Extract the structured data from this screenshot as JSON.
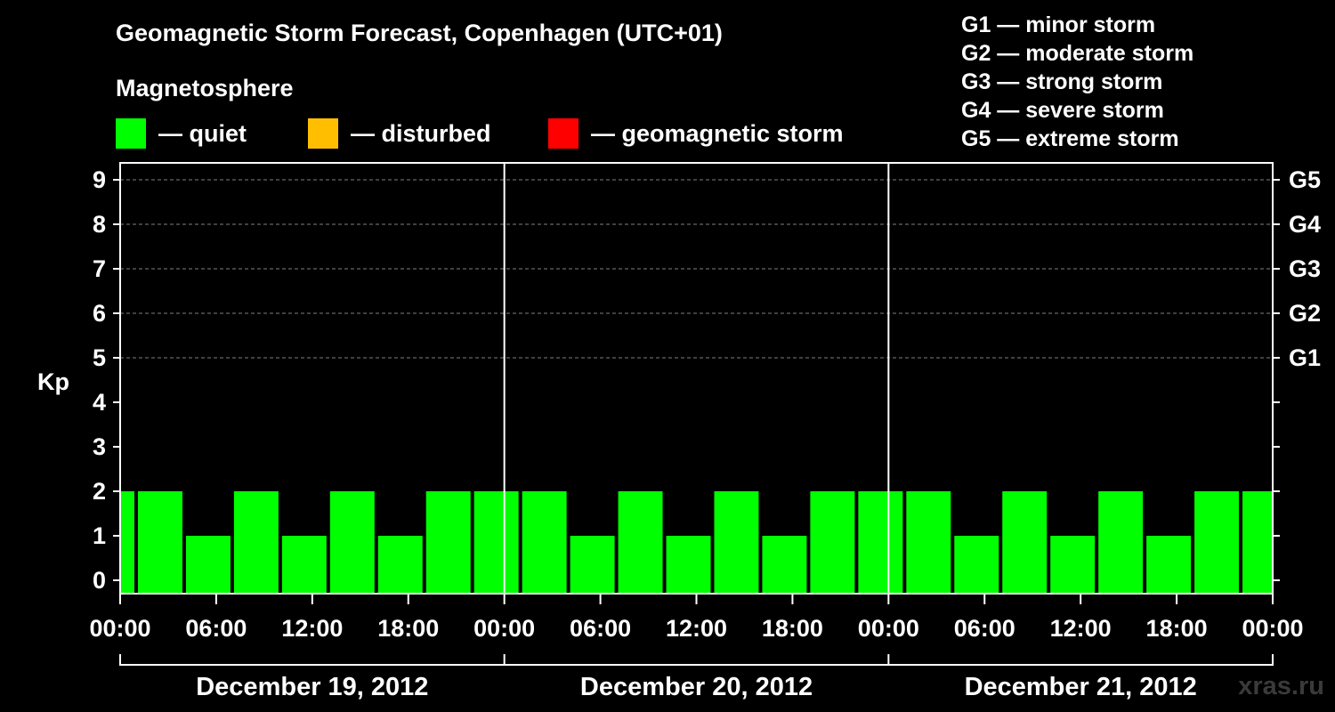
{
  "header": {
    "title": "Geomagnetic Storm Forecast, Copenhagen (UTC+01)",
    "subtitle": "Magnetosphere"
  },
  "legend": [
    {
      "label": "— quiet",
      "color": "#00ff00"
    },
    {
      "label": "— disturbed",
      "color": "#ffbf00"
    },
    {
      "label": "— geomagnetic storm",
      "color": "#ff0000"
    }
  ],
  "storm_scale": [
    "G1 — minor storm",
    "G2 — moderate storm",
    "G3 — strong storm",
    "G4 — severe storm",
    "G5 — extreme storm"
  ],
  "watermark": "xras.ru",
  "colors": {
    "quiet": "#00ff00",
    "disturbed": "#ffbf00",
    "storm": "#ff0000",
    "axis": "#ffffff",
    "grid": "#808080"
  },
  "chart_data": {
    "type": "bar",
    "title": "Geomagnetic Storm Forecast, Copenhagen (UTC+01)",
    "ylabel": "Kp",
    "ylim": [
      0,
      9
    ],
    "yticks": [
      "0",
      "1",
      "2",
      "3",
      "4",
      "5",
      "6",
      "7",
      "8",
      "9"
    ],
    "right_ticks": [
      {
        "kp": 5,
        "label": "G1"
      },
      {
        "kp": 6,
        "label": "G2"
      },
      {
        "kp": 7,
        "label": "G3"
      },
      {
        "kp": 8,
        "label": "G4"
      },
      {
        "kp": 9,
        "label": "G5"
      }
    ],
    "xlim_hours": [
      0,
      72
    ],
    "xtick_labels": [
      "00:00",
      "06:00",
      "12:00",
      "18:00",
      "00:00",
      "06:00",
      "12:00",
      "18:00",
      "00:00",
      "06:00",
      "12:00",
      "18:00",
      "00:00"
    ],
    "xtick_hours": [
      0,
      6,
      12,
      18,
      24,
      30,
      36,
      42,
      48,
      54,
      60,
      66,
      72
    ],
    "day_dividers_hours": [
      24,
      48
    ],
    "day_labels": [
      "December 19, 2012",
      "December 20, 2012",
      "December 21, 2012"
    ],
    "bars": [
      {
        "start": 0,
        "end": 1,
        "kp": 2,
        "level": "quiet"
      },
      {
        "start": 1,
        "end": 4,
        "kp": 2,
        "level": "quiet"
      },
      {
        "start": 4,
        "end": 7,
        "kp": 1,
        "level": "quiet"
      },
      {
        "start": 7,
        "end": 10,
        "kp": 2,
        "level": "quiet"
      },
      {
        "start": 10,
        "end": 13,
        "kp": 1,
        "level": "quiet"
      },
      {
        "start": 13,
        "end": 16,
        "kp": 2,
        "level": "quiet"
      },
      {
        "start": 16,
        "end": 19,
        "kp": 1,
        "level": "quiet"
      },
      {
        "start": 19,
        "end": 22,
        "kp": 2,
        "level": "quiet"
      },
      {
        "start": 22,
        "end": 25,
        "kp": 2,
        "level": "quiet"
      },
      {
        "start": 25,
        "end": 28,
        "kp": 2,
        "level": "quiet"
      },
      {
        "start": 28,
        "end": 31,
        "kp": 1,
        "level": "quiet"
      },
      {
        "start": 31,
        "end": 34,
        "kp": 2,
        "level": "quiet"
      },
      {
        "start": 34,
        "end": 37,
        "kp": 1,
        "level": "quiet"
      },
      {
        "start": 37,
        "end": 40,
        "kp": 2,
        "level": "quiet"
      },
      {
        "start": 40,
        "end": 43,
        "kp": 1,
        "level": "quiet"
      },
      {
        "start": 43,
        "end": 46,
        "kp": 2,
        "level": "quiet"
      },
      {
        "start": 46,
        "end": 49,
        "kp": 2,
        "level": "quiet"
      },
      {
        "start": 49,
        "end": 52,
        "kp": 2,
        "level": "quiet"
      },
      {
        "start": 52,
        "end": 55,
        "kp": 1,
        "level": "quiet"
      },
      {
        "start": 55,
        "end": 58,
        "kp": 2,
        "level": "quiet"
      },
      {
        "start": 58,
        "end": 61,
        "kp": 1,
        "level": "quiet"
      },
      {
        "start": 61,
        "end": 64,
        "kp": 2,
        "level": "quiet"
      },
      {
        "start": 64,
        "end": 67,
        "kp": 1,
        "level": "quiet"
      },
      {
        "start": 67,
        "end": 70,
        "kp": 2,
        "level": "quiet"
      },
      {
        "start": 70,
        "end": 72,
        "kp": 2,
        "level": "quiet"
      }
    ]
  }
}
